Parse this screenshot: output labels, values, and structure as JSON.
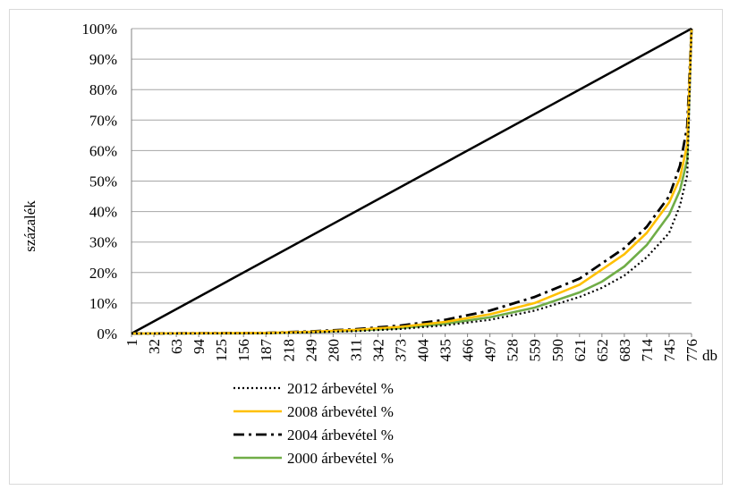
{
  "chart_data": {
    "type": "line",
    "title": "",
    "xlabel": "db",
    "ylabel": "százalék",
    "x_ticks": [
      "1",
      "32",
      "63",
      "94",
      "125",
      "156",
      "187",
      "218",
      "249",
      "280",
      "311",
      "342",
      "373",
      "404",
      "435",
      "466",
      "497",
      "528",
      "559",
      "590",
      "621",
      "652",
      "683",
      "714",
      "745",
      "776"
    ],
    "y_ticks": [
      "0%",
      "10%",
      "20%",
      "30%",
      "40%",
      "50%",
      "60%",
      "70%",
      "80%",
      "90%",
      "100%"
    ],
    "xlim": [
      1,
      776
    ],
    "ylim": [
      0,
      100
    ],
    "grid": "horizontal",
    "legend_position": "bottom",
    "equality_line": {
      "color": "#000000",
      "x": [
        1,
        776
      ],
      "y": [
        0,
        100
      ]
    },
    "series": [
      {
        "name": "2012 árbevétel %",
        "color": "#000000",
        "dash": "dotted",
        "x": [
          1,
          187,
          249,
          311,
          373,
          435,
          497,
          559,
          621,
          652,
          683,
          714,
          745,
          760,
          770,
          776
        ],
        "y": [
          0,
          0.1,
          0.4,
          0.8,
          1.5,
          2.7,
          4.5,
          7.5,
          12,
          15,
          19,
          25,
          33,
          42,
          52,
          100
        ]
      },
      {
        "name": "2008 árbevétel %",
        "color": "#ffc000",
        "dash": "solid",
        "x": [
          1,
          187,
          249,
          311,
          373,
          435,
          497,
          559,
          621,
          652,
          683,
          714,
          745,
          760,
          770,
          776
        ],
        "y": [
          0,
          0.2,
          0.6,
          1.2,
          2.2,
          3.8,
          6.3,
          10,
          16,
          21,
          26,
          33,
          43,
          51,
          62,
          100
        ]
      },
      {
        "name": "2004 árbevétel %",
        "color": "#000000",
        "dash": "dashdot",
        "x": [
          1,
          187,
          249,
          311,
          373,
          435,
          497,
          559,
          621,
          652,
          683,
          714,
          745,
          760,
          770,
          776
        ],
        "y": [
          0,
          0.2,
          0.7,
          1.4,
          2.6,
          4.5,
          7.5,
          12,
          18,
          23,
          28,
          35,
          45,
          55,
          68,
          100
        ]
      },
      {
        "name": "2000 árbevétel %",
        "color": "#70ad47",
        "dash": "solid",
        "x": [
          1,
          187,
          249,
          311,
          373,
          435,
          497,
          559,
          621,
          652,
          683,
          714,
          745,
          760,
          770,
          776
        ],
        "y": [
          0,
          0.1,
          0.5,
          1.0,
          1.8,
          3.2,
          5.3,
          8.5,
          13.5,
          17,
          22,
          29,
          39,
          47,
          57,
          100
        ]
      }
    ]
  }
}
